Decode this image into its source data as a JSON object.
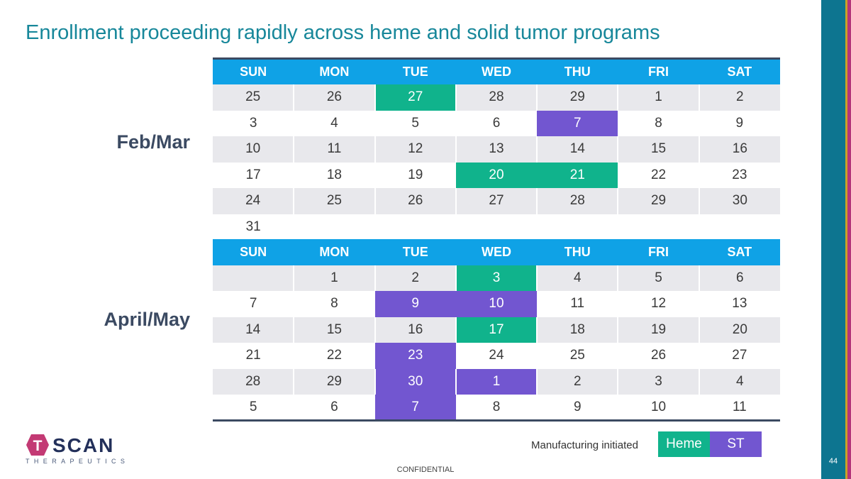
{
  "title": "Enrollment proceeding rapidly across heme and solid tumor programs",
  "weekdays": [
    "SUN",
    "MON",
    "TUE",
    "WED",
    "THU",
    "FRI",
    "SAT"
  ],
  "calendars": [
    {
      "label": "Feb/Mar",
      "rows": [
        [
          "25",
          "26",
          "27",
          "28",
          "29",
          "1",
          "2"
        ],
        [
          "3",
          "4",
          "5",
          "6",
          "7",
          "8",
          "9"
        ],
        [
          "10",
          "11",
          "12",
          "13",
          "14",
          "15",
          "16"
        ],
        [
          "17",
          "18",
          "19",
          "20",
          "21",
          "22",
          "23"
        ],
        [
          "24",
          "25",
          "26",
          "27",
          "28",
          "29",
          "30"
        ],
        [
          "31",
          "",
          "",
          "",
          "",
          "",
          ""
        ]
      ],
      "highlights": [
        [
          0,
          2,
          "heme"
        ],
        [
          1,
          4,
          "st"
        ],
        [
          3,
          3,
          "heme"
        ],
        [
          3,
          4,
          "heme"
        ]
      ]
    },
    {
      "label": "April/May",
      "rows": [
        [
          "",
          "1",
          "2",
          "3",
          "4",
          "5",
          "6"
        ],
        [
          "7",
          "8",
          "9",
          "10",
          "11",
          "12",
          "13"
        ],
        [
          "14",
          "15",
          "16",
          "17",
          "18",
          "19",
          "20"
        ],
        [
          "21",
          "22",
          "23",
          "24",
          "25",
          "26",
          "27"
        ],
        [
          "28",
          "29",
          "30",
          "1",
          "2",
          "3",
          "4"
        ],
        [
          "5",
          "6",
          "7",
          "8",
          "9",
          "10",
          "11"
        ]
      ],
      "highlights": [
        [
          0,
          3,
          "heme"
        ],
        [
          1,
          2,
          "st"
        ],
        [
          1,
          3,
          "st"
        ],
        [
          2,
          3,
          "heme"
        ],
        [
          3,
          2,
          "st"
        ],
        [
          4,
          2,
          "st"
        ],
        [
          4,
          3,
          "st"
        ],
        [
          5,
          2,
          "st"
        ]
      ]
    }
  ],
  "legend": {
    "text": "Manufacturing initiated",
    "heme_label": "Heme",
    "st_label": "ST",
    "heme_color": "#10b38c",
    "st_color": "#7256d0"
  },
  "logo": {
    "letter": "T",
    "wordmark": "SCAN",
    "subtitle": "THERAPEUTICS"
  },
  "footer": {
    "confidential": "CONFIDENTIAL",
    "page_number": "44"
  },
  "colors": {
    "header": "#0fa2e6",
    "title": "#17879a",
    "navy": "#3b4a62",
    "logo_hex": "#c33a74"
  }
}
